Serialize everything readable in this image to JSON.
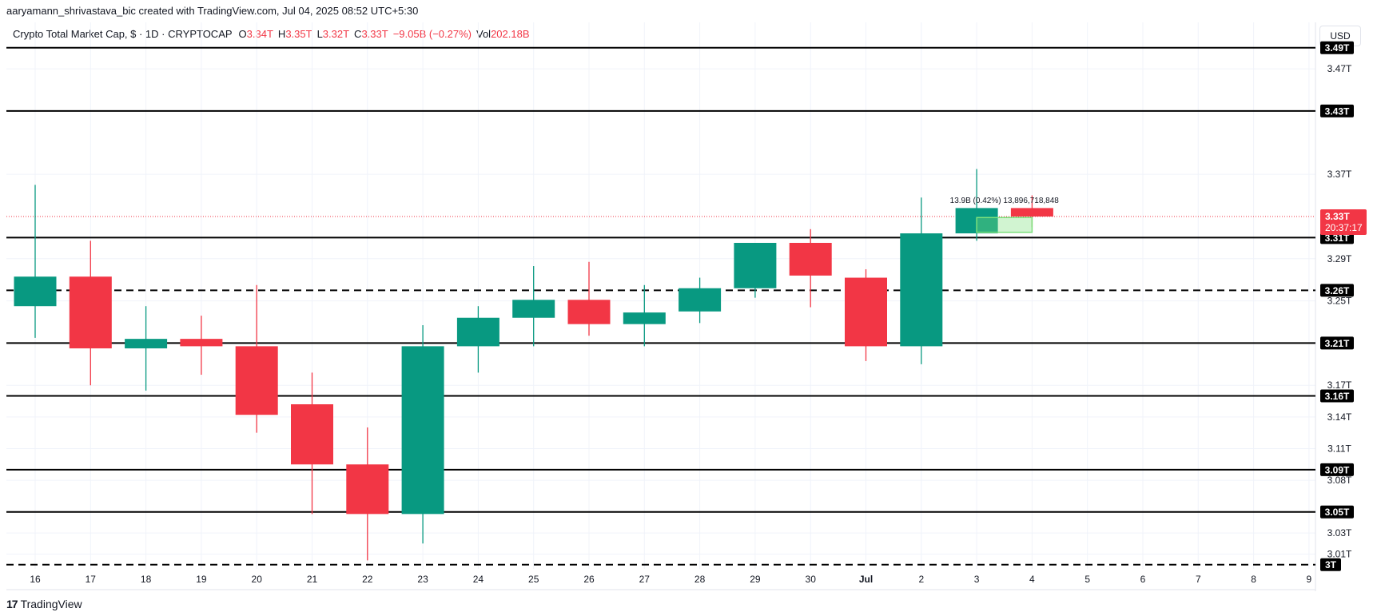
{
  "header": {
    "credit": "aaryamann_shrivastava_bic created with TradingView.com, Jul 04, 2025 08:52 UTC+5:30",
    "symbol": "Crypto Total Market Cap, $ · 1D · CRYPTOCAP",
    "o_label": "O",
    "o_value": "3.34T",
    "h_label": "H",
    "h_value": "3.35T",
    "l_label": "L",
    "l_value": "3.32T",
    "c_label": "C",
    "c_value": "3.33T",
    "change": "−9.05B (−0.27%)",
    "vol_label": "Vol",
    "vol_value": "202.18B"
  },
  "currency_button": "USD",
  "brand": "TradingView",
  "colors": {
    "up": "#089981",
    "down": "#F23645",
    "level_line": "#000000",
    "price_line": "#F23645",
    "projection": "#7CE07C",
    "grid": "#F0F3FA"
  },
  "chart_data": {
    "type": "candlestick",
    "x_ticks": [
      "16",
      "17",
      "18",
      "19",
      "20",
      "21",
      "22",
      "23",
      "24",
      "25",
      "26",
      "27",
      "28",
      "29",
      "30",
      "Jul",
      "2",
      "3",
      "4",
      "5",
      "6",
      "7",
      "8",
      "9"
    ],
    "ylim": [
      2.996,
      3.514
    ],
    "y_tick_labels": [
      "3.47T",
      "3.37T",
      "3.29T",
      "3.25T",
      "3.17T",
      "3.14T",
      "3.11T",
      "3.08T",
      "3.03T",
      "3.01T"
    ],
    "y_ticks": [
      3.47,
      3.37,
      3.29,
      3.25,
      3.17,
      3.14,
      3.11,
      3.08,
      3.03,
      3.01
    ],
    "candles": [
      {
        "x": "16",
        "open": 3.245,
        "high": 3.36,
        "low": 3.215,
        "close": 3.273
      },
      {
        "x": "17",
        "open": 3.273,
        "high": 3.307,
        "low": 3.17,
        "close": 3.205
      },
      {
        "x": "18",
        "open": 3.205,
        "high": 3.245,
        "low": 3.165,
        "close": 3.214
      },
      {
        "x": "19",
        "open": 3.214,
        "high": 3.236,
        "low": 3.18,
        "close": 3.207
      },
      {
        "x": "20",
        "open": 3.207,
        "high": 3.265,
        "low": 3.125,
        "close": 3.142
      },
      {
        "x": "21",
        "open": 3.152,
        "high": 3.182,
        "low": 3.048,
        "close": 3.095
      },
      {
        "x": "22",
        "open": 3.095,
        "high": 3.13,
        "low": 3.004,
        "close": 3.048
      },
      {
        "x": "23",
        "open": 3.048,
        "high": 3.227,
        "low": 3.02,
        "close": 3.207
      },
      {
        "x": "24",
        "open": 3.207,
        "high": 3.245,
        "low": 3.182,
        "close": 3.234
      },
      {
        "x": "25",
        "open": 3.234,
        "high": 3.283,
        "low": 3.207,
        "close": 3.251
      },
      {
        "x": "26",
        "open": 3.251,
        "high": 3.287,
        "low": 3.217,
        "close": 3.228
      },
      {
        "x": "27",
        "open": 3.228,
        "high": 3.265,
        "low": 3.207,
        "close": 3.239
      },
      {
        "x": "28",
        "open": 3.24,
        "high": 3.272,
        "low": 3.229,
        "close": 3.262
      },
      {
        "x": "29",
        "open": 3.262,
        "high": 3.303,
        "low": 3.253,
        "close": 3.305
      },
      {
        "x": "30",
        "open": 3.305,
        "high": 3.318,
        "low": 3.244,
        "close": 3.274
      },
      {
        "x": "Jul",
        "open": 3.272,
        "high": 3.28,
        "low": 3.193,
        "close": 3.207
      },
      {
        "x": "2",
        "open": 3.207,
        "high": 3.348,
        "low": 3.19,
        "close": 3.314
      },
      {
        "x": "3",
        "open": 3.314,
        "high": 3.375,
        "low": 3.307,
        "close": 3.338
      },
      {
        "x": "4",
        "open": 3.338,
        "high": 3.35,
        "low": 3.32,
        "close": 3.33
      }
    ],
    "horizontal_levels": [
      {
        "value": 3.49,
        "label": "3.49T",
        "style": "solid"
      },
      {
        "value": 3.43,
        "label": "3.43T",
        "style": "solid"
      },
      {
        "value": 3.31,
        "label": "3.31T",
        "style": "solid"
      },
      {
        "value": 3.26,
        "label": "3.26T",
        "style": "dashed"
      },
      {
        "value": 3.21,
        "label": "3.21T",
        "style": "solid"
      },
      {
        "value": 3.16,
        "label": "3.16T",
        "style": "solid"
      },
      {
        "value": 3.09,
        "label": "3.09T",
        "style": "solid"
      },
      {
        "value": 3.05,
        "label": "3.05T",
        "style": "solid"
      },
      {
        "value": 3.0,
        "label": "3T",
        "style": "dashed"
      }
    ],
    "current_price": {
      "value": 3.33,
      "label": "3.33T",
      "countdown": "20:37:17"
    },
    "projection_box": {
      "x_from": "3",
      "x_to": "4",
      "low": 3.315,
      "high": 3.329
    },
    "annotation": "13.9B (0.42%) 13,896,718,848"
  }
}
